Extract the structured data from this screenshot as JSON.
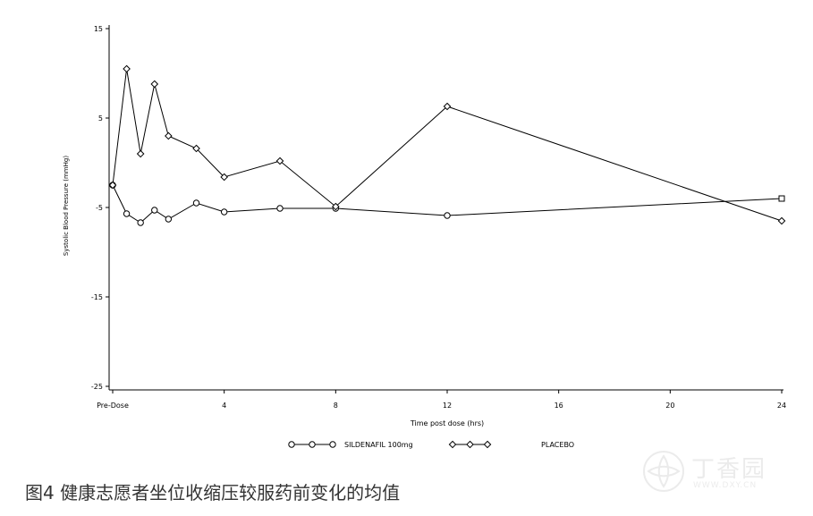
{
  "chart_data": {
    "type": "line",
    "ylabel": "Systolic Blood Pressure (mmHg)",
    "xlabel": "Time post dose (hrs)",
    "ylim": [
      -25,
      15
    ],
    "xlim": [
      0,
      24
    ],
    "y_ticks": [
      15,
      5,
      -5,
      -15,
      -25
    ],
    "y_tick_labels": [
      "15",
      "5",
      "-5",
      "-15",
      "-25"
    ],
    "x_ticks": [
      0,
      4,
      8,
      12,
      16,
      20,
      24
    ],
    "x_tick_labels": [
      "Pre-Dose",
      "4",
      "8",
      "12",
      "16",
      "20",
      "24"
    ],
    "grid": false,
    "legend_position": "bottom",
    "series": [
      {
        "name": "SILDENAFIL 100mg",
        "marker": "circle",
        "x": [
          0,
          0.5,
          1,
          1.5,
          2,
          3,
          4,
          6,
          8,
          12,
          24
        ],
        "values": [
          -2.5,
          -5.7,
          -6.7,
          -5.3,
          -6.3,
          -4.5,
          -5.5,
          -5.1,
          -5.1,
          -5.9,
          -4.0
        ]
      },
      {
        "name": "PLACEBO",
        "marker": "diamond",
        "x": [
          0,
          0.5,
          1,
          1.5,
          2,
          3,
          4,
          6,
          8,
          12,
          24
        ],
        "values": [
          -2.5,
          10.5,
          1.0,
          8.8,
          3.0,
          1.6,
          -1.6,
          0.2,
          -4.9,
          6.3,
          -6.5
        ]
      }
    ]
  },
  "caption": "图4 健康志愿者坐位收缩压较服药前变化的均值",
  "watermark": {
    "name": "丁香园",
    "url": "WWW.DXY.CN"
  }
}
